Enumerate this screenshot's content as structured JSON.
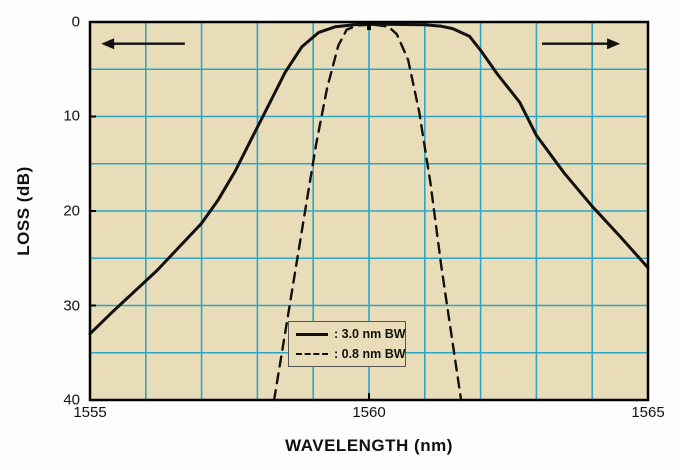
{
  "axes": {
    "x_label": "WAVELENGTH (nm)",
    "y_label": "LOSS (dB)"
  },
  "legend": {
    "items": [
      {
        "label": ": 3.0 nm BW",
        "style": "solid"
      },
      {
        "label": ": 0.8 nm BW",
        "style": "dashed"
      }
    ]
  },
  "chart_data": {
    "type": "line",
    "title": "",
    "xlabel": "WAVELENGTH (nm)",
    "ylabel": "LOSS (dB)",
    "xlim": [
      1555,
      1565
    ],
    "ylim": [
      0,
      40
    ],
    "y_inverted": true,
    "xticks": [
      1555,
      1560,
      1565
    ],
    "yticks": [
      0,
      10,
      20,
      30,
      40
    ],
    "grid": {
      "x_step_nm": 1,
      "y_step_db": 5,
      "color": "#2ba6c6",
      "on": true
    },
    "plot_bg": "#e9ddb9",
    "line_color": "#111111",
    "series": [
      {
        "name": "3.0 nm BW",
        "style": "solid",
        "points": [
          [
            1555,
            33
          ],
          [
            1555.4,
            30.7
          ],
          [
            1555.8,
            28.5
          ],
          [
            1556.2,
            26.3
          ],
          [
            1556.6,
            23.8
          ],
          [
            1557,
            21.3
          ],
          [
            1557.3,
            18.8
          ],
          [
            1557.6,
            15.8
          ],
          [
            1557.9,
            12.3
          ],
          [
            1558.2,
            8.8
          ],
          [
            1558.5,
            5.3
          ],
          [
            1558.8,
            2.6
          ],
          [
            1559.1,
            1.1
          ],
          [
            1559.4,
            0.5
          ],
          [
            1559.8,
            0.25
          ],
          [
            1560.4,
            0.25
          ],
          [
            1561,
            0.3
          ],
          [
            1561.3,
            0.45
          ],
          [
            1561.5,
            0.7
          ],
          [
            1561.8,
            1.5
          ],
          [
            1562,
            3
          ],
          [
            1562.3,
            5.5
          ],
          [
            1562.7,
            8.5
          ],
          [
            1563,
            12
          ],
          [
            1563.5,
            16
          ],
          [
            1564,
            19.5
          ],
          [
            1564.5,
            22.7
          ],
          [
            1565,
            26
          ]
        ]
      },
      {
        "name": "0.8 nm BW",
        "style": "dashed",
        "points": [
          [
            1558.3,
            40
          ],
          [
            1558.55,
            31
          ],
          [
            1558.8,
            22
          ],
          [
            1559.05,
            13
          ],
          [
            1559.25,
            7
          ],
          [
            1559.45,
            2.5
          ],
          [
            1559.6,
            0.8
          ],
          [
            1559.8,
            0.35
          ],
          [
            1560.1,
            0.3
          ],
          [
            1560.35,
            0.5
          ],
          [
            1560.5,
            1.3
          ],
          [
            1560.7,
            4
          ],
          [
            1560.9,
            9.5
          ],
          [
            1561.1,
            17
          ],
          [
            1561.3,
            26
          ],
          [
            1561.5,
            34
          ],
          [
            1561.65,
            40
          ]
        ]
      }
    ],
    "annotations": {
      "arrows": [
        {
          "dir": "left",
          "y_db": 2.3,
          "x_from": 1556.7,
          "x_to": 1555.2
        },
        {
          "dir": "right",
          "y_db": 2.3,
          "x_from": 1563.1,
          "x_to": 1564.5
        }
      ],
      "top_tick_at_nm": 1560
    },
    "legend_position": "lower-center"
  }
}
